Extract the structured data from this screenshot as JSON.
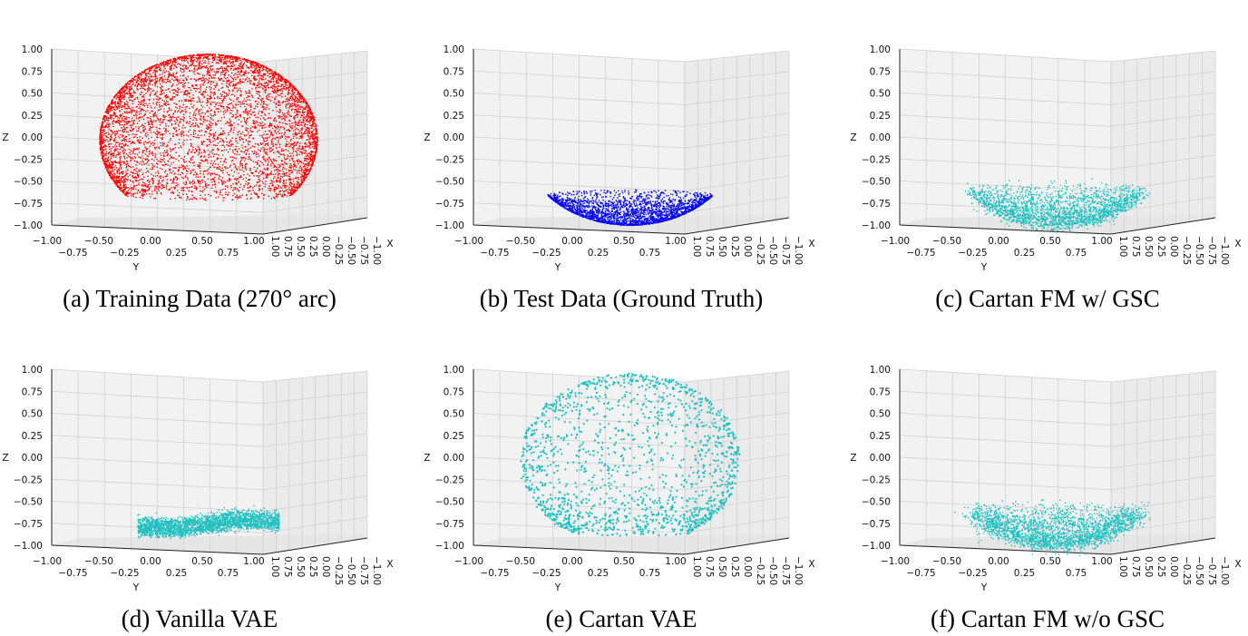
{
  "chart_data": [
    {
      "type": "scatter3d",
      "caption": "(a) Training Data (270° arc)",
      "color": "#ff0000",
      "distribution": "sphere",
      "z_range": [
        -0.65,
        1.0
      ],
      "n": 6000,
      "noise": 0,
      "xlabel": "X",
      "ylabel": "Y",
      "zlabel": "Z",
      "xlim": [
        -1,
        1
      ],
      "ylim": [
        -1,
        1
      ],
      "zlim": [
        -1,
        1
      ]
    },
    {
      "type": "scatter3d",
      "caption": "(b) Test Data (Ground Truth)",
      "color": "#0000ff",
      "distribution": "sphere",
      "z_range": [
        -1.0,
        -0.65
      ],
      "n": 2500,
      "noise": 0,
      "xlabel": "X",
      "ylabel": "Y",
      "zlabel": "Z",
      "xlim": [
        -1,
        1
      ],
      "ylim": [
        -1,
        1
      ],
      "zlim": [
        -1,
        1
      ]
    },
    {
      "type": "scatter3d",
      "caption": "(c) Cartan FM w/ GSC",
      "color": "#1fbfbf",
      "distribution": "sphere",
      "z_range": [
        -1.0,
        -0.6
      ],
      "n": 2200,
      "noise": 0.04,
      "xlabel": "X",
      "ylabel": "Y",
      "zlabel": "Z",
      "xlim": [
        -1,
        1
      ],
      "ylim": [
        -1,
        1
      ],
      "zlim": [
        -1,
        1
      ]
    },
    {
      "type": "scatter3d",
      "caption": "(d) Vanilla VAE",
      "color": "#1fbfbf",
      "distribution": "band",
      "z_range": [
        -0.82,
        -0.68
      ],
      "n": 2500,
      "noise": 0.03,
      "xlabel": "X",
      "ylabel": "Y",
      "zlabel": "Z",
      "xlim": [
        -1,
        1
      ],
      "ylim": [
        -1,
        1
      ],
      "zlim": [
        -1,
        1
      ]
    },
    {
      "type": "scatter3d",
      "caption": "(e) Cartan VAE",
      "color": "#1fbfbf",
      "distribution": "sphere-sparse",
      "z_range": [
        -0.85,
        1.0
      ],
      "n": 1600,
      "noise": 0.01,
      "xlabel": "X",
      "ylabel": "Y",
      "zlabel": "Z",
      "xlim": [
        -1,
        1
      ],
      "ylim": [
        -1,
        1
      ],
      "zlim": [
        -1,
        1
      ]
    },
    {
      "type": "scatter3d",
      "caption": "(f) Cartan FM w/o GSC",
      "color": "#1fbfbf",
      "distribution": "sphere",
      "z_range": [
        -1.0,
        -0.6
      ],
      "n": 2400,
      "noise": 0.05,
      "xlabel": "X",
      "ylabel": "Y",
      "zlabel": "Z",
      "xlim": [
        -1,
        1
      ],
      "ylim": [
        -1,
        1
      ],
      "zlim": [
        -1,
        1
      ]
    }
  ],
  "ticks": {
    "z": [
      "1.00",
      "0.75",
      "0.50",
      "0.25",
      "0.00",
      "−0.25",
      "−0.50",
      "−0.75",
      "−1.00"
    ],
    "y": [
      "−1.00",
      "−0.75",
      "−0.50",
      "−0.25",
      "0.00",
      "0.25",
      "0.50",
      "0.75",
      "1.00"
    ],
    "x": [
      "1.00",
      "0.75",
      "0.50",
      "0.25",
      "0.00",
      "−0.25",
      "−0.50",
      "−0.75",
      "−1.00"
    ]
  }
}
